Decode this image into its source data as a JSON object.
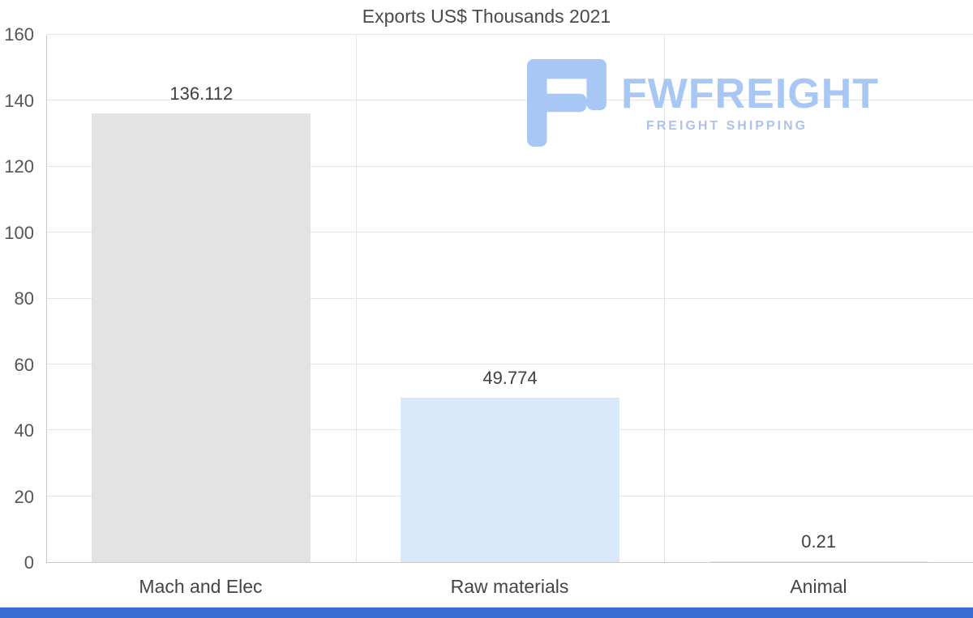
{
  "page": {
    "title": "Exports US$ Thousands 2021"
  },
  "chart_data": {
    "type": "bar",
    "title": "Exports US$ Thousands 2021",
    "categories": [
      "Mach and Elec",
      "Raw materials",
      "Animal"
    ],
    "values": [
      136.112,
      49.774,
      0.21
    ],
    "value_labels": [
      "136.112",
      "49.774",
      "0.21"
    ],
    "bar_colors": [
      "#e3e3e3",
      "#d9e8fb",
      "#d9e8fb"
    ],
    "xlabel": "",
    "ylabel": "",
    "ylim": [
      0,
      160
    ],
    "yticks": [
      0,
      20,
      40,
      60,
      80,
      100,
      120,
      140,
      160
    ],
    "grid": "on",
    "legend": "none"
  },
  "watermark": {
    "brand": "FWFREIGHT",
    "tagline": "FREIGHT SHIPPING",
    "brand_color": "#a8c7f4",
    "tagline_color": "#aec2ec",
    "icon_color": "#a8c7f4"
  },
  "footer": {
    "color": "#3b6cd4"
  }
}
